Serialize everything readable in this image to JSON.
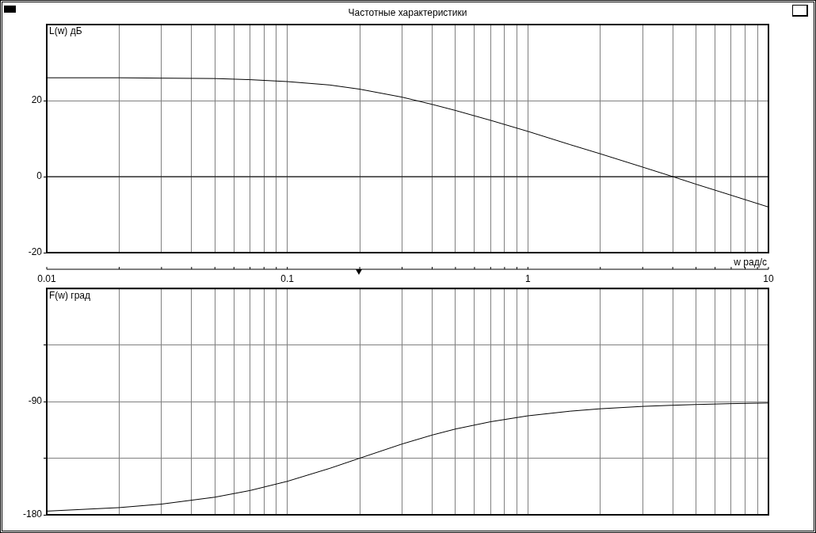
{
  "chart_data": [
    {
      "type": "line",
      "title": "Частотные характеристики",
      "ylabel": "L(w) дБ",
      "xlabel": "w рад/с",
      "log": "x",
      "grid": true,
      "x": [
        0.01,
        0.02,
        0.03,
        0.05,
        0.07,
        0.1,
        0.15,
        0.2,
        0.3,
        0.4,
        0.5,
        0.7,
        1,
        1.5,
        2,
        3,
        4,
        5,
        7,
        10
      ],
      "series": [
        {
          "color": "#000000",
          "values": [
            26.0,
            26.0,
            25.9,
            25.8,
            25.5,
            25.0,
            24.1,
            23.0,
            20.9,
            19.0,
            17.4,
            14.8,
            11.9,
            8.4,
            6.0,
            2.5,
            0.0,
            -2.0,
            -4.9,
            -8.0
          ]
        }
      ],
      "xlim": [
        0.01,
        10
      ],
      "xticks": [
        0.01,
        {
          "value": 0.02,
          "label": null
        },
        {
          "value": 0.03,
          "label": null
        },
        {
          "value": 0.04,
          "label": null
        },
        {
          "value": 0.05,
          "label": null
        },
        {
          "value": 0.06,
          "label": null
        },
        {
          "value": 0.07,
          "label": null
        },
        {
          "value": 0.08,
          "label": null
        },
        {
          "value": 0.09,
          "label": null
        },
        0.1,
        {
          "value": 0.2,
          "label": null
        },
        {
          "value": 0.3,
          "label": null
        },
        {
          "value": 0.4,
          "label": null
        },
        {
          "value": 0.5,
          "label": null
        },
        {
          "value": 0.6,
          "label": null
        },
        {
          "value": 0.7,
          "label": null
        },
        {
          "value": 0.8,
          "label": null
        },
        {
          "value": 0.9,
          "label": null
        },
        1,
        {
          "value": 2,
          "label": null
        },
        {
          "value": 3,
          "label": null
        },
        {
          "value": 4,
          "label": null
        },
        {
          "value": 5,
          "label": null
        },
        {
          "value": 6,
          "label": null
        },
        {
          "value": 7,
          "label": null
        },
        {
          "value": 8,
          "label": null
        },
        {
          "value": 9,
          "label": null
        },
        10
      ],
      "ylim": [
        -20,
        40
      ],
      "yticks": [
        -20,
        0,
        20
      ],
      "ref_lines": [
        {
          "axis": "y",
          "value": 0,
          "color": "#000000"
        }
      ]
    },
    {
      "type": "line",
      "ylabel": "F(w) град",
      "log": "x",
      "grid": true,
      "tick_labels": "y",
      "x": [
        0.01,
        0.02,
        0.03,
        0.05,
        0.07,
        0.1,
        0.15,
        0.2,
        0.3,
        0.4,
        0.5,
        0.7,
        1,
        1.5,
        2,
        3,
        4,
        5,
        7,
        10
      ],
      "series": [
        {
          "color": "#000000",
          "values": [
            -177.1,
            -174.3,
            -171.5,
            -166.0,
            -160.7,
            -153.4,
            -143.1,
            -135.0,
            -123.7,
            -116.6,
            -111.8,
            -106.0,
            -101.3,
            -97.6,
            -95.7,
            -93.8,
            -92.9,
            -92.3,
            -91.6,
            -91.1
          ]
        }
      ],
      "xlim": [
        0.01,
        10
      ],
      "xticks": [
        0.01,
        {
          "value": 0.02,
          "label": null
        },
        {
          "value": 0.03,
          "label": null
        },
        {
          "value": 0.04,
          "label": null
        },
        {
          "value": 0.05,
          "label": null
        },
        {
          "value": 0.06,
          "label": null
        },
        {
          "value": 0.07,
          "label": null
        },
        {
          "value": 0.08,
          "label": null
        },
        {
          "value": 0.09,
          "label": null
        },
        0.1,
        {
          "value": 0.2,
          "label": null
        },
        {
          "value": 0.3,
          "label": null
        },
        {
          "value": 0.4,
          "label": null
        },
        {
          "value": 0.5,
          "label": null
        },
        {
          "value": 0.6,
          "label": null
        },
        {
          "value": 0.7,
          "label": null
        },
        {
          "value": 0.8,
          "label": null
        },
        {
          "value": 0.9,
          "label": null
        },
        1,
        {
          "value": 2,
          "label": null
        },
        {
          "value": 3,
          "label": null
        },
        {
          "value": 4,
          "label": null
        },
        {
          "value": 5,
          "label": null
        },
        {
          "value": 6,
          "label": null
        },
        {
          "value": 7,
          "label": null
        },
        {
          "value": 8,
          "label": null
        },
        {
          "value": 9,
          "label": null
        },
        10
      ],
      "ylim": [
        -180,
        0
      ],
      "yticks": [
        -180,
        {
          "value": -135,
          "label": null
        },
        -90,
        {
          "value": -45,
          "label": null
        }
      ]
    }
  ]
}
